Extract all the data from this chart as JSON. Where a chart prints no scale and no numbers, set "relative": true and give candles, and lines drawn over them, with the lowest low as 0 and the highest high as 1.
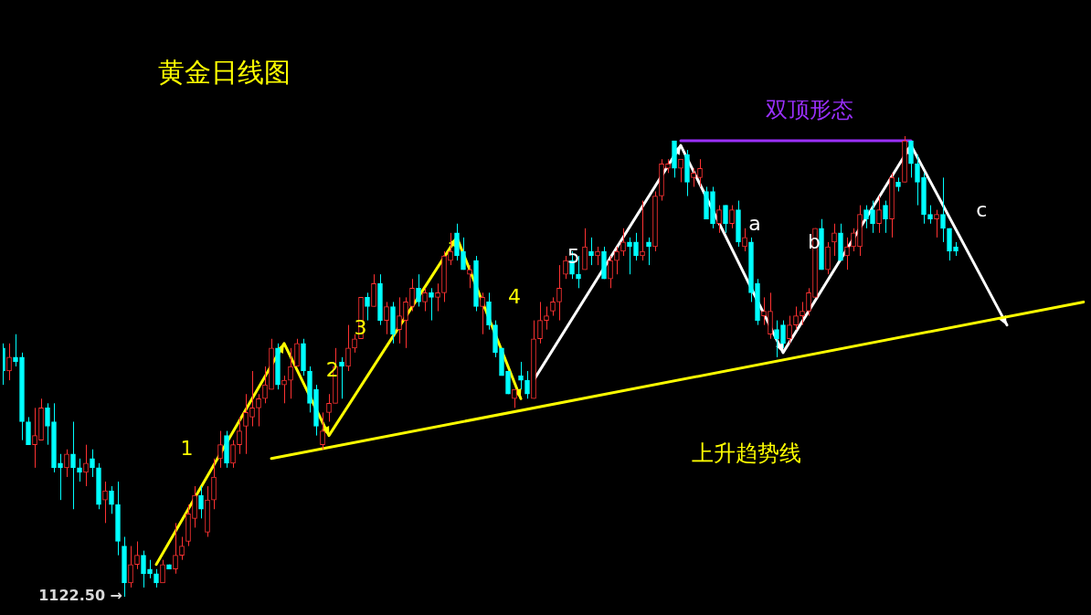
{
  "chart_data": {
    "type": "candlestick",
    "title": "黄金日线图",
    "relative": true,
    "categories": [
      null,
      null,
      null,
      null,
      null,
      null,
      null,
      null,
      null,
      null,
      null,
      null,
      null,
      null,
      null,
      null,
      null,
      null,
      null,
      null,
      null,
      null,
      null,
      null,
      null,
      null,
      null,
      null,
      null,
      null,
      null,
      null,
      null,
      null,
      null,
      null,
      null,
      null,
      null,
      null,
      null,
      null,
      null,
      null,
      null,
      null,
      null,
      null,
      null,
      null,
      null,
      null,
      null,
      null,
      null,
      null,
      null,
      null,
      null,
      null,
      null,
      null,
      null,
      null,
      null,
      null,
      null,
      null,
      null,
      null,
      null,
      null,
      null,
      null,
      null,
      null,
      null,
      null,
      null,
      null,
      null,
      null,
      null,
      null,
      null,
      null,
      null,
      null,
      null,
      null,
      null,
      null,
      null,
      null,
      null,
      null,
      null,
      null,
      null,
      null,
      null,
      null,
      null,
      null,
      null,
      null,
      null,
      null,
      null,
      null,
      null,
      null,
      null,
      null,
      null,
      null,
      null,
      null,
      null,
      null,
      null,
      null,
      null,
      null,
      null,
      null,
      null,
      null,
      null,
      null,
      null,
      null,
      null,
      null,
      null,
      null,
      null,
      null,
      null,
      null,
      null,
      null,
      null,
      null,
      null,
      null,
      null,
      null,
      null,
      null,
      null,
      null,
      null,
      null,
      null,
      null,
      null,
      null,
      null,
      null,
      null,
      null,
      null,
      null,
      null,
      null,
      null,
      null,
      null,
      null
    ],
    "ohlc": [
      [
        0.54,
        0.55,
        0.46,
        0.49
      ],
      [
        0.49,
        0.55,
        0.47,
        0.52
      ],
      [
        0.52,
        0.57,
        0.5,
        0.51
      ],
      [
        0.52,
        0.53,
        0.34,
        0.38
      ],
      [
        0.38,
        0.39,
        0.33,
        0.33
      ],
      [
        0.33,
        0.41,
        0.28,
        0.35
      ],
      [
        0.34,
        0.43,
        0.34,
        0.41
      ],
      [
        0.41,
        0.42,
        0.33,
        0.37
      ],
      [
        0.38,
        0.42,
        0.27,
        0.28
      ],
      [
        0.29,
        0.31,
        0.21,
        0.28
      ],
      [
        0.28,
        0.32,
        0.26,
        0.31
      ],
      [
        0.31,
        0.38,
        0.19,
        0.28
      ],
      [
        0.28,
        0.3,
        0.25,
        0.27
      ],
      [
        0.27,
        0.33,
        0.24,
        0.29
      ],
      [
        0.3,
        0.32,
        0.26,
        0.28
      ],
      [
        0.28,
        0.29,
        0.19,
        0.2
      ],
      [
        0.21,
        0.25,
        0.16,
        0.23
      ],
      [
        0.23,
        0.24,
        0.18,
        0.2
      ],
      [
        0.2,
        0.25,
        0.09,
        0.12
      ],
      [
        0.11,
        0.13,
        0,
        0.03
      ],
      [
        0.03,
        0.11,
        0.02,
        0.07
      ],
      [
        0.07,
        0.12,
        0.06,
        0.09
      ],
      [
        0.09,
        0.1,
        0.02,
        0.05
      ],
      [
        0.06,
        0.08,
        0.04,
        0.05
      ],
      [
        0.05,
        0.06,
        0.02,
        0.03
      ],
      [
        0.03,
        0.08,
        0.03,
        0.07
      ],
      [
        0.07,
        0.07,
        0.06,
        0.06
      ],
      [
        0.06,
        0.16,
        0.05,
        0.09
      ],
      [
        0.09,
        0.13,
        0.08,
        0.11
      ],
      [
        0.12,
        0.2,
        0.11,
        0.18
      ],
      [
        0.17,
        0.24,
        0.15,
        0.22
      ],
      [
        0.22,
        0.24,
        0.17,
        0.19
      ],
      [
        0.14,
        0.24,
        0.13,
        0.21
      ],
      [
        0.21,
        0.3,
        0.19,
        0.26
      ],
      [
        0.3,
        0.36,
        0.28,
        0.33
      ],
      [
        0.35,
        0.36,
        0.28,
        0.29
      ],
      [
        0.29,
        0.34,
        0.28,
        0.33
      ],
      [
        0.33,
        0.39,
        0.31,
        0.36
      ],
      [
        0.37,
        0.44,
        0.31,
        0.4
      ],
      [
        0.39,
        0.49,
        0.37,
        0.41
      ],
      [
        0.41,
        0.44,
        0.37,
        0.43
      ],
      [
        0.43,
        0.5,
        0.42,
        0.46
      ],
      [
        0.45,
        0.56,
        0.45,
        0.54
      ],
      [
        0.54,
        0.55,
        0.45,
        0.46
      ],
      [
        0.46,
        0.48,
        0.42,
        0.47
      ],
      [
        0.47,
        0.54,
        0.43,
        0.5
      ],
      [
        0.5,
        0.56,
        0.5,
        0.55
      ],
      [
        0.55,
        0.56,
        0.48,
        0.49
      ],
      [
        0.49,
        0.5,
        0.4,
        0.42
      ],
      [
        0.45,
        0.46,
        0.35,
        0.37
      ],
      [
        0.33,
        0.4,
        0.32,
        0.36
      ],
      [
        0.4,
        0.44,
        0.38,
        0.42
      ],
      [
        0.42,
        0.54,
        0.42,
        0.5
      ],
      [
        0.51,
        0.52,
        0.43,
        0.5
      ],
      [
        0.5,
        0.59,
        0.49,
        0.54
      ],
      [
        0.54,
        0.57,
        0.53,
        0.56
      ],
      [
        0.56,
        0.65,
        0.56,
        0.65
      ],
      [
        0.65,
        0.66,
        0.6,
        0.63
      ],
      [
        0.63,
        0.7,
        0.63,
        0.68
      ],
      [
        0.68,
        0.7,
        0.59,
        0.6
      ],
      [
        0.6,
        0.64,
        0.57,
        0.63
      ],
      [
        0.63,
        0.64,
        0.55,
        0.57
      ],
      [
        0.58,
        0.65,
        0.55,
        0.61
      ],
      [
        0.6,
        0.65,
        0.54,
        0.64
      ],
      [
        0.63,
        0.69,
        0.62,
        0.67
      ],
      [
        0.67,
        0.7,
        0.63,
        0.64
      ],
      [
        0.64,
        0.67,
        0.62,
        0.66
      ],
      [
        0.66,
        0.67,
        0.6,
        0.65
      ],
      [
        0.65,
        0.68,
        0.62,
        0.66
      ],
      [
        0.66,
        0.75,
        0.64,
        0.74
      ],
      [
        0.73,
        0.79,
        0.72,
        0.75
      ],
      [
        0.79,
        0.81,
        0.73,
        0.74
      ],
      [
        0.75,
        0.78,
        0.71,
        0.71
      ],
      [
        0.7,
        0.72,
        0.67,
        0.71
      ],
      [
        0.73,
        0.74,
        0.62,
        0.63
      ],
      [
        0.63,
        0.66,
        0.57,
        0.65
      ],
      [
        0.64,
        0.66,
        0.58,
        0.59
      ],
      [
        0.59,
        0.6,
        0.52,
        0.53
      ],
      [
        0.54,
        0.54,
        0.48,
        0.48
      ],
      [
        0.49,
        0.49,
        0.44,
        0.44
      ],
      [
        0.43,
        0.45,
        0.41,
        0.45
      ],
      [
        0.48,
        0.51,
        0.45,
        0.47
      ],
      [
        0.47,
        0.49,
        0.43,
        0.44
      ],
      [
        0.43,
        0.6,
        0.43,
        0.56
      ],
      [
        0.56,
        0.64,
        0.55,
        0.6
      ],
      [
        0.6,
        0.63,
        0.58,
        0.61
      ],
      [
        0.62,
        0.65,
        0.61,
        0.64
      ],
      [
        0.64,
        0.72,
        0.6,
        0.67
      ],
      [
        0.7,
        0.74,
        0.69,
        0.73
      ],
      [
        0.73,
        0.75,
        0.69,
        0.7
      ],
      [
        0.7,
        0.74,
        0.67,
        0.69
      ],
      [
        0.71,
        0.8,
        0.71,
        0.76
      ],
      [
        0.75,
        0.78,
        0.72,
        0.74
      ],
      [
        0.74,
        0.76,
        0.72,
        0.75
      ],
      [
        0.75,
        0.76,
        0.69,
        0.69
      ],
      [
        0.69,
        0.74,
        0.67,
        0.73
      ],
      [
        0.73,
        0.76,
        0.7,
        0.75
      ],
      [
        0.75,
        0.8,
        0.74,
        0.77
      ],
      [
        0.77,
        0.78,
        0.7,
        0.76
      ],
      [
        0.77,
        0.79,
        0.73,
        0.74
      ],
      [
        0.74,
        0.86,
        0.73,
        0.75
      ],
      [
        0.77,
        0.78,
        0.72,
        0.76
      ],
      [
        0.76,
        0.88,
        0.75,
        0.87
      ],
      [
        0.87,
        0.95,
        0.86,
        0.94
      ],
      [
        0.93,
        0.95,
        0.92,
        0.94
      ],
      [
        0.99,
        0.99,
        0.91,
        0.93
      ],
      [
        0.93,
        0.95,
        0.9,
        0.95
      ],
      [
        0.96,
        0.97,
        0.87,
        0.9
      ],
      [
        0.91,
        0.93,
        0.89,
        0.92
      ],
      [
        0.91,
        0.95,
        0.89,
        0.93
      ],
      [
        0.88,
        0.89,
        0.82,
        0.82
      ],
      [
        0.88,
        0.89,
        0.8,
        0.81
      ],
      [
        0.81,
        0.85,
        0.79,
        0.84
      ],
      [
        0.85,
        0.85,
        0.79,
        0.81
      ],
      [
        0.81,
        0.85,
        0.8,
        0.84
      ],
      [
        0.84,
        0.86,
        0.76,
        0.77
      ],
      [
        0.76,
        0.8,
        0.75,
        0.78
      ],
      [
        0.77,
        0.78,
        0.64,
        0.66
      ],
      [
        0.68,
        0.69,
        0.59,
        0.6
      ],
      [
        0.61,
        0.65,
        0.59,
        0.62
      ],
      [
        0.57,
        0.66,
        0.56,
        0.62
      ],
      [
        0.58,
        0.6,
        0.52,
        0.56
      ],
      [
        0.59,
        0.6,
        0.54,
        0.55
      ],
      [
        0.56,
        0.61,
        0.55,
        0.59
      ],
      [
        0.59,
        0.63,
        0.58,
        0.61
      ],
      [
        0.61,
        0.64,
        0.59,
        0.62
      ],
      [
        0.62,
        0.67,
        0.61,
        0.66
      ],
      [
        0.65,
        0.8,
        0.65,
        0.8
      ],
      [
        0.8,
        0.82,
        0.71,
        0.71
      ],
      [
        0.71,
        0.77,
        0.7,
        0.76
      ],
      [
        0.77,
        0.81,
        0.74,
        0.79
      ],
      [
        0.79,
        0.81,
        0.73,
        0.73
      ],
      [
        0.74,
        0.78,
        0.71,
        0.76
      ],
      [
        0.76,
        0.8,
        0.75,
        0.79
      ],
      [
        0.76,
        0.85,
        0.74,
        0.83
      ],
      [
        0.84,
        0.85,
        0.8,
        0.82
      ],
      [
        0.84,
        0.86,
        0.79,
        0.81
      ],
      [
        0.81,
        0.87,
        0.79,
        0.84
      ],
      [
        0.85,
        0.86,
        0.79,
        0.82
      ],
      [
        0.82,
        0.92,
        0.78,
        0.91
      ],
      [
        0.9,
        0.91,
        0.88,
        0.89
      ],
      [
        0.9,
        1,
        0.9,
        0.99
      ],
      [
        0.99,
        0.99,
        0.91,
        0.94
      ],
      [
        0.94,
        0.96,
        0.85,
        0.9
      ],
      [
        0.91,
        0.92,
        0.81,
        0.83
      ],
      [
        0.83,
        0.85,
        0.81,
        0.82
      ],
      [
        0.82,
        0.84,
        0.78,
        0.83
      ],
      [
        0.83,
        0.91,
        0.77,
        0.8
      ],
      [
        0.8,
        0.8,
        0.73,
        0.75
      ],
      [
        0.76,
        0.77,
        0.74,
        0.75
      ],
      null,
      null,
      null,
      null,
      null,
      null,
      null,
      null,
      null,
      null,
      null,
      null,
      null,
      null,
      null,
      null,
      null,
      null,
      null,
      null
    ],
    "colors": [
      "#00ffff",
      "#ff3232",
      "#00ffff",
      "#00ffff",
      "#00ffff",
      "#ff3232",
      "#ff3232",
      "#00ffff",
      "#00ffff",
      "#00ffff",
      "#ff3232",
      "#00ffff",
      "#00ffff",
      "#ff3232",
      "#00ffff",
      "#00ffff",
      "#ff3232",
      "#00ffff",
      "#00ffff",
      "#00ffff",
      "#ff3232",
      "#ff3232",
      "#00ffff",
      "#00ffff",
      "#00ffff",
      "#ff3232",
      "#00ffff",
      "#ff3232",
      "#ff3232",
      "#ff3232",
      "#ff3232",
      "#00ffff",
      "#ff3232",
      "#ff3232",
      "#ff3232",
      "#00ffff",
      "#ff3232",
      "#ff3232",
      "#ff3232",
      "#ff3232",
      "#ff3232",
      "#ff3232",
      "#ff3232",
      "#00ffff",
      "#ff3232",
      "#ff3232",
      "#ff3232",
      "#00ffff",
      "#00ffff",
      "#00ffff",
      "#ff3232",
      "#ff3232",
      "#ff3232",
      "#00ffff",
      "#ff3232",
      "#ff3232",
      "#ff3232",
      "#00ffff",
      "#ff3232",
      "#00ffff",
      "#ff3232",
      "#00ffff",
      "#ff3232",
      "#ff3232",
      "#ff3232",
      "#00ffff",
      "#ff3232",
      "#00ffff",
      "#ff3232",
      "#ff3232",
      "#ff3232",
      "#00ffff",
      "#00ffff",
      "#ff3232",
      "#00ffff",
      "#ff3232",
      "#00ffff",
      "#00ffff",
      "#00ffff",
      "#00ffff",
      "#ff3232",
      "#00ffff",
      "#00ffff",
      "#ff3232",
      "#ff3232",
      "#ff3232",
      "#ff3232",
      "#ff3232",
      "#ff3232",
      "#00ffff",
      "#00ffff",
      "#ff3232",
      "#00ffff",
      "#ff3232",
      "#00ffff",
      "#ff3232",
      "#ff3232",
      "#ff3232",
      "#00ffff",
      "#00ffff",
      "#ff3232",
      "#00ffff",
      "#ff3232",
      "#ff3232",
      "#ff3232",
      "#00ffff",
      "#ff3232",
      "#00ffff",
      "#ff3232",
      "#ff3232",
      "#00ffff",
      "#00ffff",
      "#ff3232",
      "#00ffff",
      "#ff3232",
      "#00ffff",
      "#ff3232",
      "#00ffff",
      "#00ffff",
      "#ff3232",
      "#ff3232",
      "#00ffff",
      "#00ffff",
      "#ff3232",
      "#ff3232",
      "#ff3232",
      "#ff3232",
      "#ff3232",
      "#00ffff",
      "#ff3232",
      "#ff3232",
      "#00ffff",
      "#ff3232",
      "#ff3232",
      "#ff3232",
      "#00ffff",
      "#00ffff",
      "#ff3232",
      "#00ffff",
      "#ff3232",
      "#00ffff",
      "#ff3232",
      "#00ffff",
      "#00ffff",
      "#00ffff",
      "#00ffff",
      "#ff3232",
      "#00ffff",
      "#00ffff",
      "#00ffff",
      null,
      null,
      null,
      null,
      null,
      null,
      null,
      null,
      null,
      null,
      null,
      null,
      null,
      null,
      null,
      null,
      null,
      null,
      null,
      null
    ],
    "series": [
      {
        "type": "line",
        "name": "上升趋势线",
        "color": "#ffff00",
        "values": [
          null,
          null,
          null,
          null,
          null,
          null,
          null,
          null,
          null,
          null,
          null,
          null,
          null,
          null,
          null,
          null,
          null,
          null,
          null,
          null,
          null,
          null,
          null,
          null,
          null,
          null,
          null,
          null,
          null,
          null,
          null,
          null,
          null,
          null,
          null,
          null,
          null,
          null,
          null,
          null,
          null,
          null,
          0.3,
          null,
          null,
          null,
          null,
          null,
          null,
          null,
          null,
          null,
          null,
          null,
          null,
          null,
          null,
          null,
          null,
          null,
          null,
          null,
          null,
          null,
          null,
          null,
          null,
          null,
          null,
          null,
          null,
          null,
          null,
          null,
          null,
          null,
          null,
          null,
          null,
          null,
          null,
          null,
          null,
          null,
          null,
          null,
          null,
          null,
          null,
          null,
          null,
          null,
          null,
          null,
          null,
          null,
          null,
          null,
          null,
          null,
          null,
          null,
          null,
          null,
          null,
          null,
          null,
          null,
          null,
          null,
          null,
          null,
          null,
          null,
          null,
          null,
          null,
          null,
          null,
          null,
          null,
          null,
          null,
          null,
          null,
          null,
          null,
          null,
          null,
          null,
          null,
          null,
          null,
          null,
          null,
          null,
          null,
          null,
          null,
          null,
          null,
          null,
          null,
          null,
          null,
          null,
          null,
          null,
          null,
          null,
          null,
          null,
          null,
          null,
          null,
          null,
          null,
          null,
          null,
          null,
          null,
          null,
          null,
          null,
          null,
          null,
          null,
          null,
          null,
          0.64
        ]
      },
      {
        "type": "line",
        "name": "双顶形态",
        "color": "#9b30ff",
        "values": [
          null,
          null,
          null,
          null,
          null,
          null,
          null,
          null,
          null,
          null,
          null,
          null,
          null,
          null,
          null,
          null,
          null,
          null,
          null,
          null,
          null,
          null,
          null,
          null,
          null,
          null,
          null,
          null,
          null,
          null,
          null,
          null,
          null,
          null,
          null,
          null,
          null,
          null,
          null,
          null,
          null,
          null,
          null,
          null,
          null,
          null,
          null,
          null,
          null,
          null,
          null,
          null,
          null,
          null,
          null,
          null,
          null,
          null,
          null,
          null,
          null,
          null,
          null,
          null,
          null,
          null,
          null,
          null,
          null,
          null,
          null,
          null,
          null,
          null,
          null,
          null,
          null,
          null,
          null,
          null,
          null,
          null,
          null,
          null,
          null,
          null,
          null,
          null,
          null,
          null,
          null,
          null,
          null,
          null,
          null,
          null,
          null,
          null,
          null,
          null,
          null,
          null,
          null,
          null,
          null,
          null,
          0.99,
          null,
          null,
          null,
          null,
          null,
          null,
          null,
          null,
          null,
          null,
          null,
          null,
          null,
          null,
          null,
          null,
          null,
          null,
          null,
          null,
          null,
          null,
          null,
          null,
          null,
          null,
          null,
          null,
          null,
          null,
          null,
          null,
          null,
          null,
          null,
          0.99,
          null,
          null,
          null,
          null,
          null,
          null,
          null,
          null,
          null,
          null,
          null,
          null,
          null,
          null,
          null,
          null,
          null,
          null,
          null,
          null,
          null,
          null,
          null,
          null,
          null,
          null,
          null
        ]
      },
      {
        "type": "line",
        "color": "#ffff00",
        "values": [
          null,
          null,
          null,
          null,
          null,
          null,
          null,
          null,
          null,
          null,
          null,
          null,
          null,
          null,
          null,
          null,
          null,
          null,
          null,
          null,
          null,
          null,
          null,
          null,
          0.07,
          null,
          null,
          null,
          null,
          null,
          null,
          null,
          null,
          null,
          null,
          null,
          null,
          null,
          null,
          null,
          null,
          null,
          null,
          null,
          0.55,
          null,
          null,
          null,
          null,
          null,
          null,
          0.35,
          null,
          null,
          null,
          null,
          null,
          null,
          null,
          null,
          null,
          null,
          null,
          null,
          null,
          null,
          null,
          null,
          null,
          null,
          null,
          0.78,
          null,
          null,
          null,
          null,
          null,
          null,
          null,
          null,
          null,
          0.43,
          null,
          null,
          null,
          null,
          null,
          null,
          null,
          null,
          null,
          null,
          null,
          null,
          null,
          null,
          null,
          null,
          null,
          null,
          null,
          null,
          null,
          null,
          null,
          null,
          null,
          null,
          null,
          null,
          null,
          null,
          null,
          null,
          null,
          null,
          null,
          null,
          null,
          null,
          null,
          null,
          null,
          null,
          null,
          null,
          null,
          null,
          null,
          null,
          null,
          null,
          null,
          null,
          null,
          null,
          null,
          null,
          null,
          null,
          null,
          null,
          null,
          null,
          null,
          null,
          null,
          null,
          null,
          null,
          null,
          null,
          null,
          null,
          null,
          null,
          null,
          null,
          null,
          null,
          null,
          null,
          null,
          null,
          null,
          null,
          null,
          null,
          null,
          null
        ]
      },
      {
        "type": "line",
        "color": "#ffffff",
        "values": [
          null,
          null,
          null,
          null,
          null,
          null,
          null,
          null,
          null,
          null,
          null,
          null,
          null,
          null,
          null,
          null,
          null,
          null,
          null,
          null,
          null,
          null,
          null,
          null,
          null,
          null,
          null,
          null,
          null,
          null,
          null,
          null,
          null,
          null,
          null,
          null,
          null,
          null,
          null,
          null,
          null,
          null,
          null,
          null,
          null,
          null,
          null,
          null,
          null,
          null,
          null,
          null,
          null,
          null,
          null,
          null,
          null,
          null,
          null,
          null,
          null,
          null,
          null,
          null,
          null,
          null,
          null,
          null,
          null,
          null,
          null,
          null,
          null,
          null,
          null,
          null,
          null,
          null,
          null,
          null,
          null,
          null,
          null,
          0.47,
          null,
          null,
          null,
          null,
          null,
          null,
          null,
          null,
          null,
          null,
          null,
          null,
          null,
          null,
          null,
          null,
          null,
          null,
          null,
          null,
          null,
          null,
          0.98,
          null,
          null,
          null,
          null,
          null,
          null,
          null,
          null,
          null,
          null,
          null,
          null,
          null,
          null,
          null,
          0.53,
          null,
          null,
          null,
          null,
          null,
          null,
          null,
          null,
          null,
          null,
          null,
          null,
          null,
          null,
          null,
          null,
          null,
          null,
          null,
          0.98,
          null,
          null,
          null,
          null,
          null,
          null,
          null,
          null,
          null,
          null,
          null,
          null,
          null,
          null,
          0.59,
          null,
          null,
          null,
          null,
          null,
          null,
          null,
          null,
          null,
          null,
          null,
          null
        ]
      }
    ],
    "annotations": [
      "1122.50 →",
      "1",
      "2",
      "3",
      "4",
      "5",
      "a",
      "b",
      "c"
    ]
  }
}
